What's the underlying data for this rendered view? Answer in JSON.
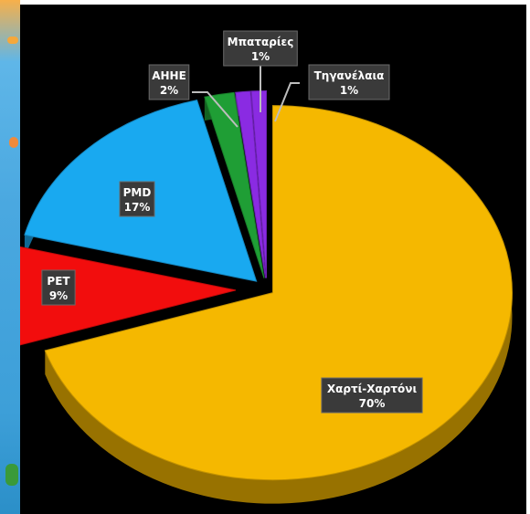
{
  "chart_data": {
    "type": "pie",
    "categories": [
      "Χαρτί-Χαρτόνι",
      "PET",
      "PMD",
      "ΑΗΗΕ",
      "Μπαταρίες",
      "Τηγανέλαια"
    ],
    "values": [
      70,
      9,
      17,
      2,
      1,
      1
    ],
    "value_labels": [
      "70%",
      "9%",
      "17%",
      "2%",
      "1%",
      "1%"
    ],
    "colors": [
      "#f5b800",
      "#f20d0d",
      "#19a9f0",
      "#1f9e35",
      "#8a2be2",
      "#8a2be2"
    ],
    "title": "",
    "legend": "none"
  }
}
